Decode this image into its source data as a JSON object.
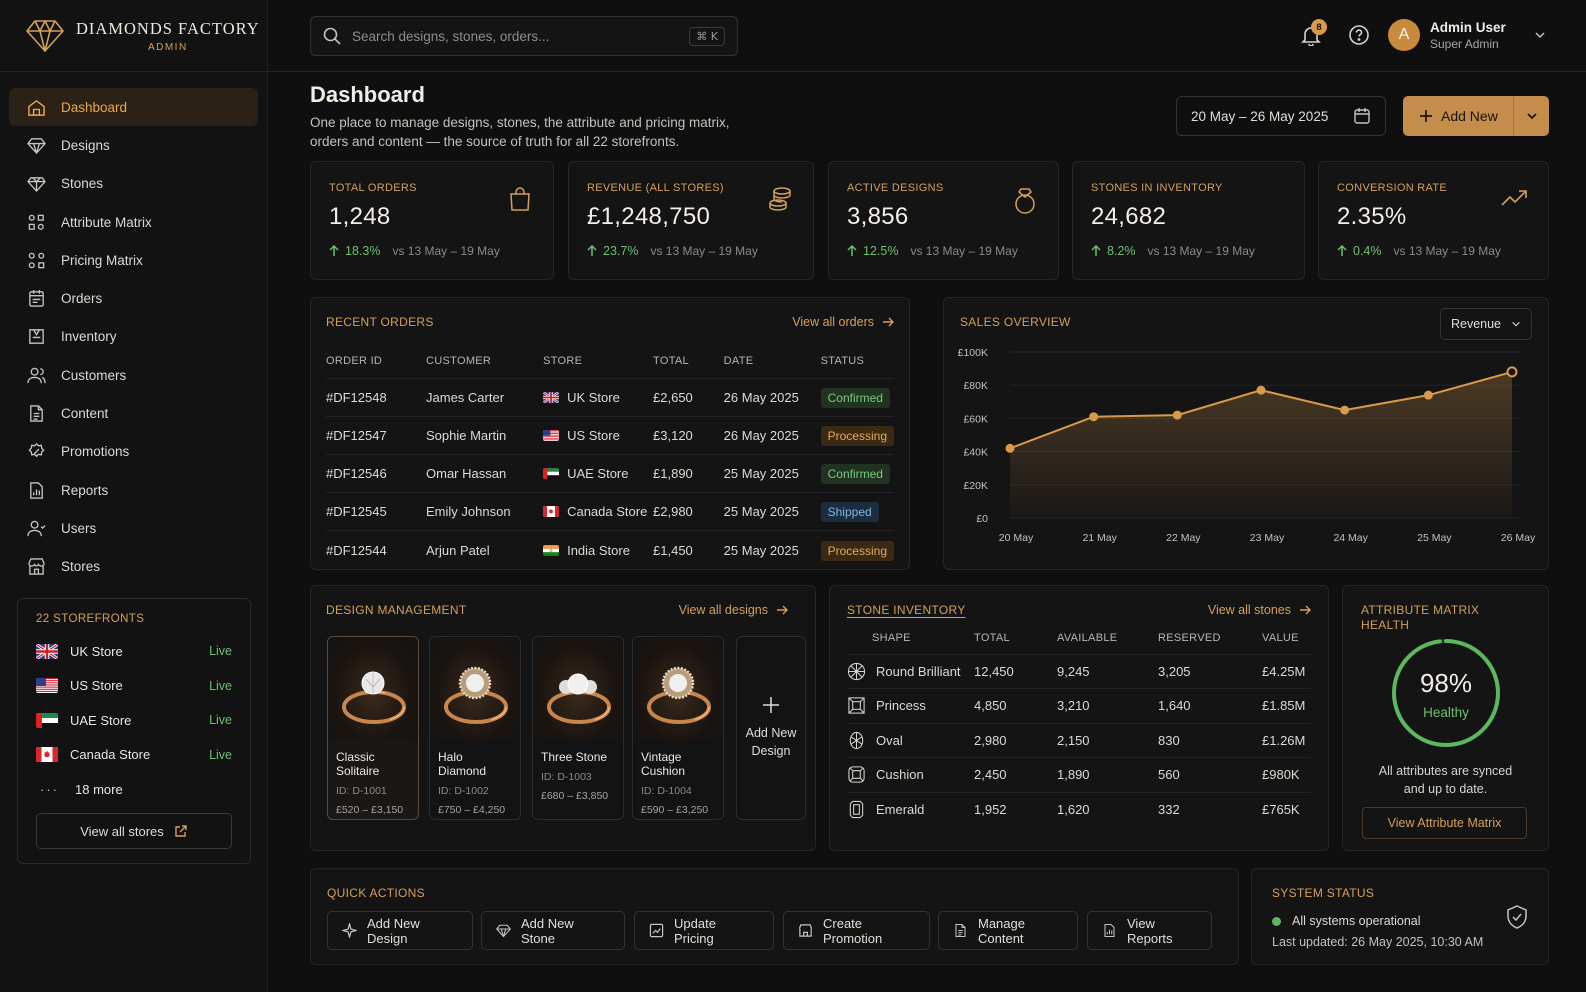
{
  "brand": {
    "name": "DIAMONDS FACTORY",
    "sub": "ADMIN"
  },
  "nav": [
    {
      "label": "Dashboard",
      "icon": "home-icon",
      "active": true
    },
    {
      "label": "Designs",
      "icon": "diamond-icon"
    },
    {
      "label": "Stones",
      "icon": "gem-icon"
    },
    {
      "label": "Attribute Matrix",
      "icon": "matrix-icon"
    },
    {
      "label": "Pricing Matrix",
      "icon": "pricing-matrix-icon"
    },
    {
      "label": "Orders",
      "icon": "orders-icon"
    },
    {
      "label": "Inventory",
      "icon": "inventory-icon"
    },
    {
      "label": "Customers",
      "icon": "customers-icon"
    },
    {
      "label": "Content",
      "icon": "content-icon"
    },
    {
      "label": "Promotions",
      "icon": "promotions-icon"
    },
    {
      "label": "Reports",
      "icon": "reports-icon"
    },
    {
      "label": "Users",
      "icon": "users-icon"
    },
    {
      "label": "Stores",
      "icon": "stores-icon"
    }
  ],
  "storefronts": {
    "title": "22 STOREFRONTS",
    "items": [
      {
        "name": "UK Store",
        "status": "Live"
      },
      {
        "name": "US Store",
        "status": "Live"
      },
      {
        "name": "UAE Store",
        "status": "Live"
      },
      {
        "name": "Canada Store",
        "status": "Live"
      }
    ],
    "more": "18 more",
    "view_all": "View all stores"
  },
  "search": {
    "placeholder": "Search designs, stones, orders...",
    "shortcut": "⌘ K"
  },
  "notifications": {
    "count": "8"
  },
  "user": {
    "initial": "A",
    "name": "Admin User",
    "role": "Super Admin"
  },
  "header": {
    "title": "Dashboard",
    "subtitle": "One place to manage designs, stones, the attribute and pricing matrix, orders and content — the source of truth for all 22 storefronts.",
    "date_range": "20 May – 26 May 2025",
    "add_new": "Add New"
  },
  "kpis": [
    {
      "label": "TOTAL ORDERS",
      "value": "1,248",
      "change": "18.3%",
      "vs": "vs 13 May – 19 May",
      "icon": "shopping-bag-icon"
    },
    {
      "label": "REVENUE (ALL STORES)",
      "value": "£1,248,750",
      "change": "23.7%",
      "vs": "vs 13 May – 19 May",
      "icon": "coins-icon"
    },
    {
      "label": "ACTIVE DESIGNS",
      "value": "3,856",
      "change": "12.5%",
      "vs": "vs 13 May – 19 May",
      "icon": "ring-icon"
    },
    {
      "label": "STONES IN INVENTORY",
      "value": "24,682",
      "change": "8.2%",
      "vs": "vs 13 May – 19 May",
      "icon": "diamond-icon"
    },
    {
      "label": "CONVERSION RATE",
      "value": "2.35%",
      "change": "0.4%",
      "vs": "vs 13 May – 19 May",
      "icon": "trend-up-icon"
    }
  ],
  "recent_orders": {
    "title": "RECENT ORDERS",
    "view_all": "View all orders",
    "columns": [
      "ORDER ID",
      "CUSTOMER",
      "STORE",
      "TOTAL",
      "DATE",
      "STATUS"
    ],
    "rows": [
      {
        "id": "#DF12548",
        "customer": "James Carter",
        "store": "UK Store",
        "flag": "uk",
        "total": "£2,650",
        "date": "26 May 2025",
        "status": "Confirmed"
      },
      {
        "id": "#DF12547",
        "customer": "Sophie Martin",
        "store": "US Store",
        "flag": "us",
        "total": "£3,120",
        "date": "26 May 2025",
        "status": "Processing"
      },
      {
        "id": "#DF12546",
        "customer": "Omar Hassan",
        "store": "UAE Store",
        "flag": "uae",
        "total": "£1,890",
        "date": "25 May 2025",
        "status": "Confirmed"
      },
      {
        "id": "#DF12545",
        "customer": "Emily Johnson",
        "store": "Canada Store",
        "flag": "ca",
        "total": "£2,980",
        "date": "25 May 2025",
        "status": "Shipped"
      },
      {
        "id": "#DF12544",
        "customer": "Arjun Patel",
        "store": "India Store",
        "flag": "in",
        "total": "£1,450",
        "date": "25 May 2025",
        "status": "Processing"
      }
    ]
  },
  "sales_overview": {
    "title": "SALES OVERVIEW",
    "metric": "Revenue"
  },
  "chart_data": {
    "type": "area",
    "x": [
      "20 May",
      "21 May",
      "22 May",
      "23 May",
      "24 May",
      "25 May",
      "26 May"
    ],
    "series": [
      {
        "values": [
          42000,
          61000,
          62000,
          77000,
          65000,
          74000,
          88000
        ]
      }
    ],
    "y_ticks": [
      "£0",
      "£20K",
      "£40K",
      "£60K",
      "£80K",
      "£100K"
    ],
    "ylim": [
      0,
      100000
    ],
    "grid": "horizontal",
    "color": "#d99a4a"
  },
  "design_management": {
    "title": "DESIGN MANAGEMENT",
    "view_all": "View all designs",
    "items": [
      {
        "name": "Classic Solitaire",
        "id": "ID: D-1001",
        "price": "£520 – £3,150",
        "kind": "solitaire"
      },
      {
        "name": "Halo Diamond",
        "id": "ID: D-1002",
        "price": "£750 – £4,250",
        "kind": "halo"
      },
      {
        "name": "Three Stone",
        "id": "ID: D-1003",
        "price": "£680 – £3,850",
        "kind": "three"
      },
      {
        "name": "Vintage Cushion",
        "id": "ID: D-1004",
        "price": "£590 – £3,250",
        "kind": "halo"
      }
    ],
    "add_new": "Add New Design"
  },
  "stone_inventory": {
    "title": "STONE INVENTORY",
    "view_all": "View all stones",
    "columns": [
      "SHAPE",
      "TOTAL",
      "AVAILABLE",
      "RESERVED",
      "VALUE"
    ],
    "rows": [
      {
        "shape": "Round Brilliant",
        "total": "12,450",
        "available": "9,245",
        "reserved": "3,205",
        "value": "£4.25M",
        "icon": "round-stone-icon"
      },
      {
        "shape": "Princess",
        "total": "4,850",
        "available": "3,210",
        "reserved": "1,640",
        "value": "£1.85M",
        "icon": "princess-stone-icon"
      },
      {
        "shape": "Oval",
        "total": "2,980",
        "available": "2,150",
        "reserved": "830",
        "value": "£1.26M",
        "icon": "oval-stone-icon"
      },
      {
        "shape": "Cushion",
        "total": "2,450",
        "available": "1,890",
        "reserved": "560",
        "value": "£980K",
        "icon": "cushion-stone-icon"
      },
      {
        "shape": "Emerald",
        "total": "1,952",
        "available": "1,620",
        "reserved": "332",
        "value": "£765K",
        "icon": "emerald-stone-icon"
      }
    ]
  },
  "attribute_health": {
    "title": "ATTRIBUTE MATRIX HEALTH",
    "percent": "98%",
    "fraction": 0.98,
    "status": "Healthy",
    "message": "All attributes are synced and up to date.",
    "button": "View Attribute Matrix"
  },
  "quick_actions": {
    "title": "QUICK ACTIONS",
    "items": [
      {
        "label": "Add New Design",
        "icon": "sparkle-icon"
      },
      {
        "label": "Add New Stone",
        "icon": "diamond-icon"
      },
      {
        "label": "Update Pricing",
        "icon": "pricing-icon"
      },
      {
        "label": "Create Promotion",
        "icon": "promotion-icon"
      },
      {
        "label": "Manage Content",
        "icon": "content-icon"
      },
      {
        "label": "View Reports",
        "icon": "reports-icon"
      }
    ]
  },
  "system_status": {
    "title": "SYSTEM STATUS",
    "status": "All systems operational",
    "updated": "Last updated: 26 May 2025, 10:30 AM"
  }
}
